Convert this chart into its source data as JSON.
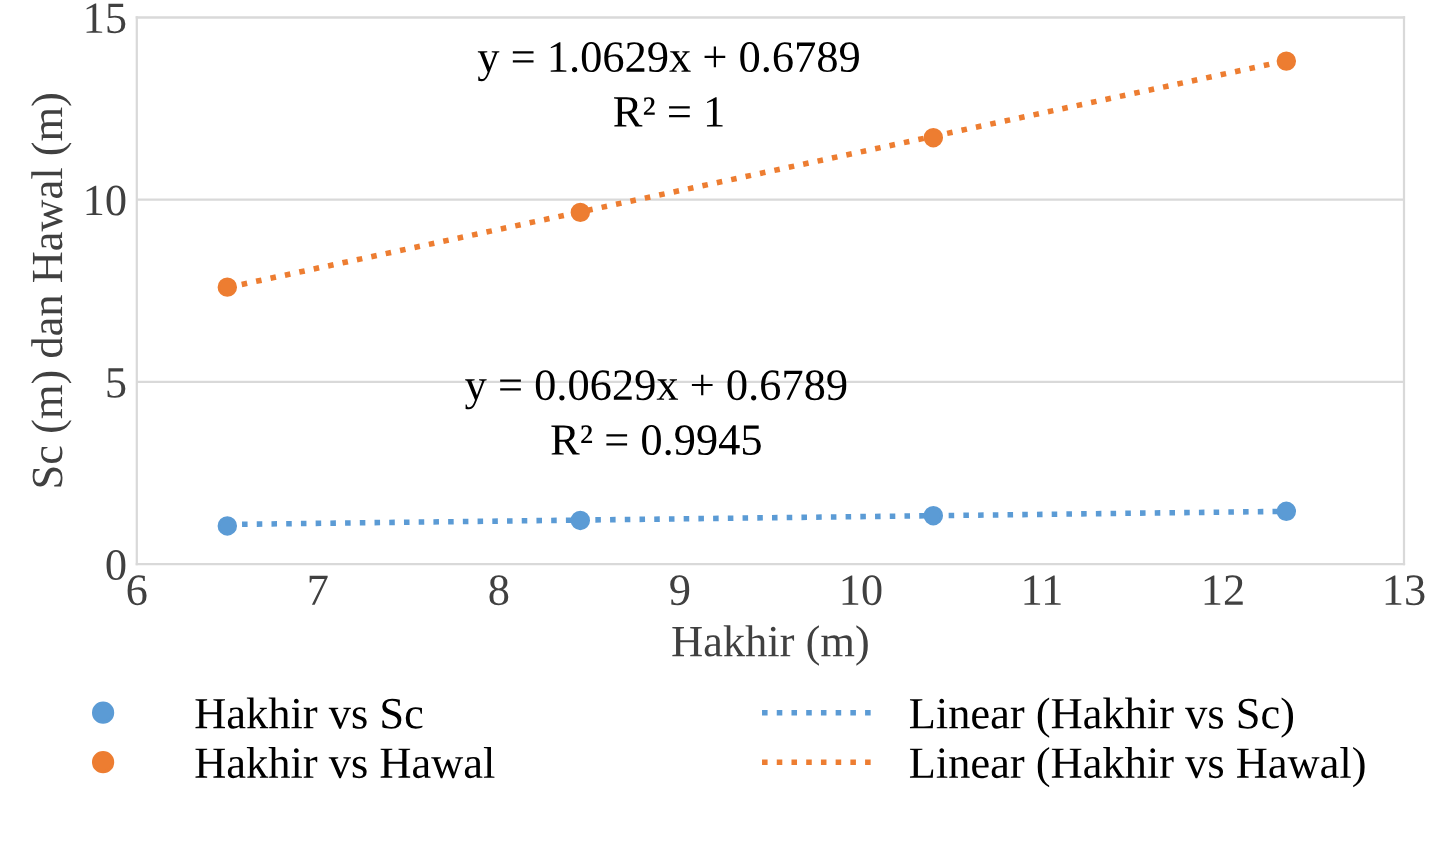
{
  "chart_data": {
    "type": "scatter",
    "xlabel": "Hakhir (m)",
    "ylabel": "Sc (m) dan Hawal (m)",
    "xlim": [
      6,
      13
    ],
    "xticks": [
      6,
      7,
      8,
      9,
      10,
      11,
      12,
      13
    ],
    "ylim": [
      0,
      15
    ],
    "yticks": [
      0,
      5,
      10,
      15
    ],
    "grid": "y",
    "legend": "bottom",
    "series": [
      {
        "name": "Hakhir vs Sc",
        "marker": "circle",
        "color": "#5b9bd5",
        "x": [
          6.5,
          8.45,
          10.4,
          12.35
        ],
        "values": [
          1.05,
          1.2,
          1.33,
          1.45
        ]
      },
      {
        "name": "Hakhir vs Hawal",
        "marker": "circle",
        "color": "#ed7d31",
        "x": [
          6.5,
          8.45,
          10.4,
          12.35
        ],
        "values": [
          7.6,
          9.65,
          11.7,
          13.8
        ]
      },
      {
        "name": "Linear (Hakhir vs Sc)",
        "type": "line",
        "line_style": "dotted",
        "marker": "none",
        "color": "#5b9bd5",
        "x": [
          6.5,
          12.35
        ],
        "values": [
          1.09,
          1.45
        ]
      },
      {
        "name": "Linear (Hakhir vs Hawal)",
        "type": "line",
        "line_style": "dotted",
        "marker": "none",
        "color": "#ed7d31",
        "x": [
          6.5,
          12.35
        ],
        "values": [
          7.59,
          13.81
        ]
      }
    ],
    "annotations": [
      "y = 1.0629x + 0.6789",
      "R² = 1",
      "y = 0.0629x + 0.6789",
      "R² = 0.9945"
    ]
  }
}
